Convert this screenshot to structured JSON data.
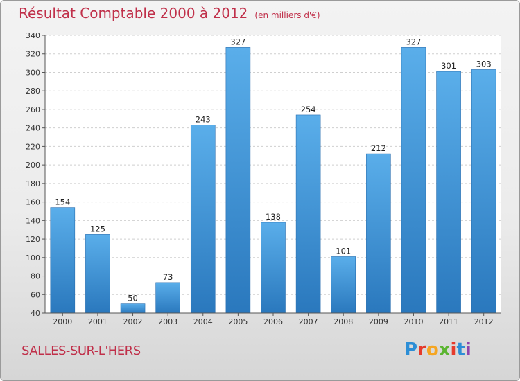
{
  "title": "Résultat Comptable 2000 à 2012",
  "subtitle": "(en milliers d'€)",
  "place": "SALLES-SUR-L'HERS",
  "logo": {
    "letters": [
      "P",
      "r",
      "o",
      "x",
      "i",
      "t",
      "i"
    ],
    "colors": [
      "#2c8ed6",
      "#e53b2c",
      "#f5a623",
      "#5bb531",
      "#e53b2c",
      "#2c8ed6",
      "#8e44ad"
    ]
  },
  "colors": {
    "bar": "#3d8fd6",
    "title": "#c0304a"
  },
  "chart_data": {
    "type": "bar",
    "categories": [
      "2000",
      "2001",
      "2002",
      "2003",
      "2004",
      "2005",
      "2006",
      "2007",
      "2008",
      "2009",
      "2010",
      "2011",
      "2012"
    ],
    "values": [
      154,
      125,
      50,
      73,
      243,
      327,
      138,
      254,
      101,
      212,
      327,
      301,
      303
    ],
    "ylim": [
      40,
      340
    ],
    "yticks": [
      40,
      60,
      80,
      100,
      120,
      140,
      160,
      180,
      200,
      220,
      240,
      260,
      280,
      300,
      320,
      340
    ],
    "grid": true
  }
}
